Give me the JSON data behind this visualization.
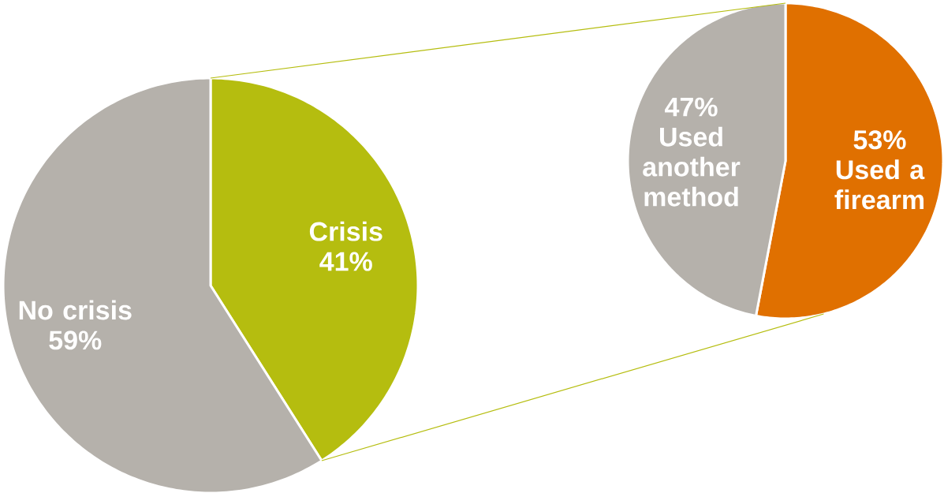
{
  "chart_data": [
    {
      "type": "pie",
      "categories": [
        "Crisis",
        "No crisis"
      ],
      "values": [
        41,
        59
      ],
      "colors": [
        "#b5bd0f",
        "#b5b1ab"
      ],
      "value_labels": [
        "41%",
        "59%"
      ]
    },
    {
      "type": "pie",
      "categories": [
        "Used a firearm",
        "Used another method"
      ],
      "values": [
        53,
        47
      ],
      "colors": [
        "#e07000",
        "#b5b1ab"
      ],
      "value_labels": [
        "53%",
        "47%"
      ]
    }
  ]
}
